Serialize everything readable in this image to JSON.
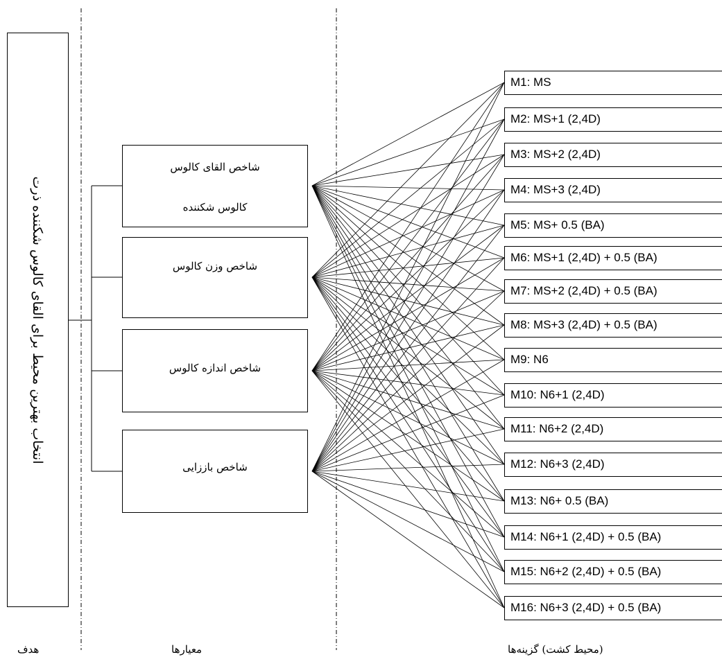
{
  "goal": {
    "text": "انتخاب بهترین محیط برای القای کالوس شکننده ذرت"
  },
  "criteria": [
    {
      "label": "شاخص القای کالوس",
      "extra": "کالوس شکننده"
    },
    {
      "label": "شاخص وزن کالوس",
      "extra": ""
    },
    {
      "label": "شاخص اندازه کالوس",
      "extra": ""
    },
    {
      "label": "شاخص باززایی",
      "extra": ""
    }
  ],
  "alternatives": [
    "M1: MS",
    "M2: MS+1 (2,4D)",
    "M3: MS+2 (2,4D)",
    "M4: MS+3 (2,4D)",
    "M5: MS+ 0.5 (BA)",
    "M6: MS+1 (2,4D) + 0.5 (BA)",
    "M7: MS+2 (2,4D) + 0.5 (BA)",
    "M8: MS+3 (2,4D) + 0.5 (BA)",
    "M9: N6",
    "M10: N6+1 (2,4D)",
    "M11: N6+2 (2,4D)",
    "M12: N6+3 (2,4D)",
    "M13: N6+ 0.5 (BA)",
    "M14: N6+1 (2,4D) + 0.5 (BA)",
    "M15: N6+2 (2,4D) + 0.5 (BA)",
    "M16: N6+3 (2,4D) + 0.5 (BA)"
  ],
  "footer": {
    "goal_label": "هدف",
    "criteria_label": "معیارها",
    "alternatives_label": "(محیط کشت) گزینه‌ها"
  }
}
